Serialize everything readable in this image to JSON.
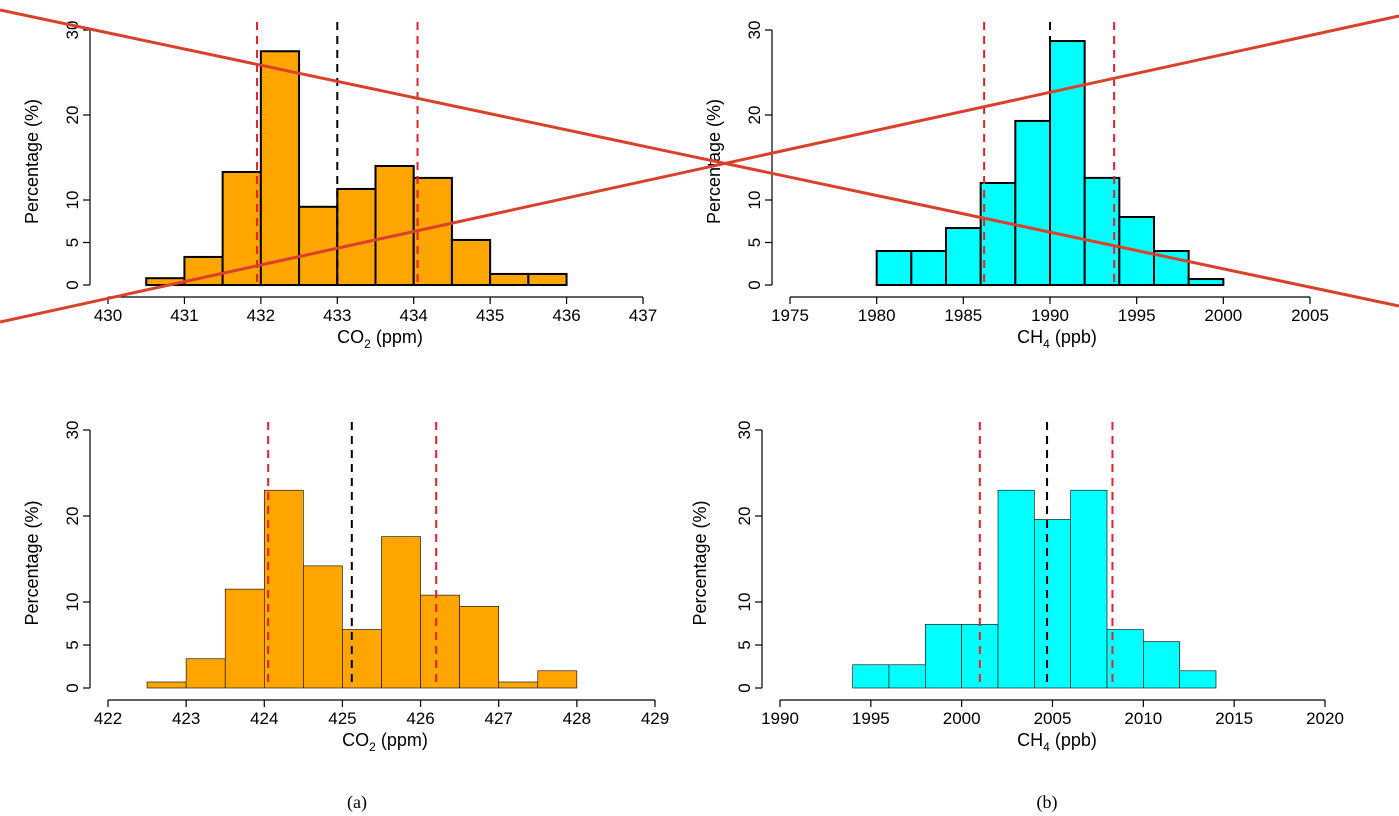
{
  "captions": {
    "left": "(a)",
    "right": "(b)"
  },
  "overlay": {
    "color": "#d9412b"
  },
  "chart_data": [
    {
      "type": "bar",
      "panel": "top-left",
      "xlabel": "CO",
      "xlabel_sub": "2",
      "xlabel_unit": " (ppm)",
      "ylabel": "Percentage (%)",
      "xlim": [
        430,
        437
      ],
      "ylim": [
        0,
        30
      ],
      "xticks": [
        430,
        431,
        432,
        433,
        434,
        435,
        436,
        437
      ],
      "yticks": [
        0,
        5,
        10,
        20,
        30
      ],
      "bin_width": 0.5,
      "bin_starts": [
        430.5,
        431.0,
        431.5,
        432.0,
        432.5,
        433.0,
        433.5,
        434.0,
        434.5,
        435.0,
        435.5
      ],
      "values": [
        0.8,
        3.3,
        13.3,
        27.5,
        9.2,
        11.3,
        14.0,
        12.6,
        5.3,
        1.3,
        1.3
      ],
      "fill": "#ffa500",
      "outline": "#000000",
      "outline_width": 2,
      "vlines": [
        {
          "x": 431.95,
          "color": "#e8202a"
        },
        {
          "x": 433.0,
          "color": "#000000"
        },
        {
          "x": 434.05,
          "color": "#e8202a"
        }
      ]
    },
    {
      "type": "bar",
      "panel": "top-right",
      "xlabel": "CH",
      "xlabel_sub": "4",
      "xlabel_unit": " (ppb)",
      "ylabel": "Percentage (%)",
      "xlim": [
        1975,
        2005
      ],
      "ylim": [
        0,
        30
      ],
      "xticks": [
        1975,
        1980,
        1985,
        1990,
        1995,
        2000,
        2005
      ],
      "yticks": [
        0,
        5,
        10,
        20,
        30
      ],
      "bin_width": 2,
      "bin_starts": [
        1980,
        1982,
        1984,
        1986,
        1988,
        1990,
        1992,
        1994,
        1996,
        1998
      ],
      "values": [
        4.0,
        4.0,
        6.7,
        12.0,
        19.3,
        28.7,
        12.6,
        8.0,
        4.0,
        0.7
      ],
      "fill": "#00ffff",
      "outline": "#000000",
      "outline_width": 2,
      "vlines": [
        {
          "x": 1986.2,
          "color": "#e8202a"
        },
        {
          "x": 1990.0,
          "color": "#000000"
        },
        {
          "x": 1993.7,
          "color": "#e8202a"
        }
      ]
    },
    {
      "type": "bar",
      "panel": "bottom-left",
      "xlabel": "CO",
      "xlabel_sub": "2",
      "xlabel_unit": " (ppm)",
      "ylabel": "Percentage (%)",
      "xlim": [
        422,
        429
      ],
      "ylim": [
        0,
        30
      ],
      "xticks": [
        422,
        423,
        424,
        425,
        426,
        427,
        428,
        429
      ],
      "yticks": [
        0,
        5,
        10,
        20,
        30
      ],
      "bin_width": 0.5,
      "bin_starts": [
        422.5,
        423.0,
        423.5,
        424.0,
        424.5,
        425.0,
        425.5,
        426.0,
        426.5,
        427.0,
        427.5
      ],
      "values": [
        0.7,
        3.4,
        11.5,
        23.0,
        14.2,
        6.8,
        17.6,
        10.8,
        9.5,
        0.7,
        2.0
      ],
      "fill": "#ffa500",
      "outline": "#000000",
      "outline_width": 0.6,
      "vlines": [
        {
          "x": 424.05,
          "color": "#e8202a"
        },
        {
          "x": 425.12,
          "color": "#000000"
        },
        {
          "x": 426.2,
          "color": "#e8202a"
        }
      ]
    },
    {
      "type": "bar",
      "panel": "bottom-right",
      "xlabel": "CH",
      "xlabel_sub": "4",
      "xlabel_unit": " (ppb)",
      "ylabel": "Percentage (%)",
      "xlim": [
        1990,
        2020
      ],
      "ylim": [
        0,
        30
      ],
      "xticks": [
        1990,
        1995,
        2000,
        2005,
        2010,
        2015,
        2020
      ],
      "yticks": [
        0,
        5,
        10,
        20,
        30
      ],
      "bin_width": 2,
      "bin_starts": [
        1994,
        1996,
        1998,
        2000,
        2002,
        2004,
        2006,
        2008,
        2010,
        2012
      ],
      "values": [
        2.7,
        2.7,
        7.4,
        7.4,
        23.0,
        19.6,
        23.0,
        6.8,
        5.4,
        2.0
      ],
      "fill": "#00ffff",
      "outline": "#000000",
      "outline_width": 0.6,
      "vlines": [
        {
          "x": 2001.0,
          "color": "#e8202a"
        },
        {
          "x": 2004.7,
          "color": "#000000"
        },
        {
          "x": 2008.3,
          "color": "#e8202a"
        }
      ]
    }
  ]
}
